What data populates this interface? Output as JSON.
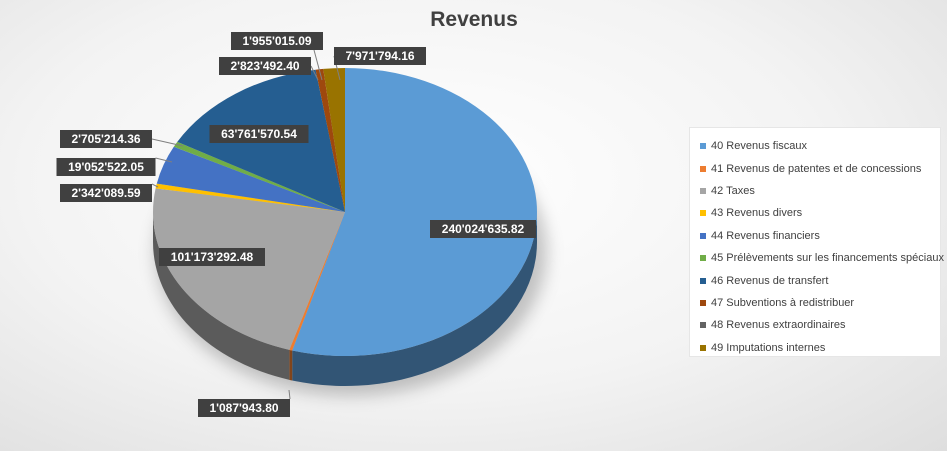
{
  "chart_data": {
    "type": "pie",
    "title": "Revenus",
    "legend_position": "right",
    "slices": [
      {
        "label": "40 Revenus fiscaux",
        "value": 240024635.82,
        "display": "240'024'635.82",
        "color": "#5b9bd5"
      },
      {
        "label": "41 Revenus de patentes et de concessions",
        "value": 1087943.8,
        "display": "1'087'943.80",
        "color": "#ed7d31"
      },
      {
        "label": "42 Taxes",
        "value": 101173292.48,
        "display": "101'173'292.48",
        "color": "#a5a5a5"
      },
      {
        "label": "43 Revenus divers",
        "value": 2342089.59,
        "display": "2'342'089.59",
        "color": "#ffc000"
      },
      {
        "label": "44 Revenus financiers",
        "value": 19052522.05,
        "display": "19'052'522.05",
        "color": "#4472c4"
      },
      {
        "label": "45 Prélèvements sur les financements spéciaux",
        "value": 2705214.36,
        "display": "2'705'214.36",
        "color": "#70ad47"
      },
      {
        "label": "46 Revenus de transfert",
        "value": 63761570.54,
        "display": "63'761'570.54",
        "color": "#255e91"
      },
      {
        "label": "47 Subventions à redistribuer",
        "value": 2823492.4,
        "display": "2'823'492.40",
        "color": "#9e480e"
      },
      {
        "label": "48 Revenus extraordinaires",
        "value": 0,
        "display": "",
        "color": "#636363"
      },
      {
        "label": "49 Imputations internes",
        "value": 7971794.16,
        "display": "7'971'794.16",
        "color": "#997300"
      }
    ],
    "extra_labels": [
      "1'955'015.09"
    ]
  }
}
